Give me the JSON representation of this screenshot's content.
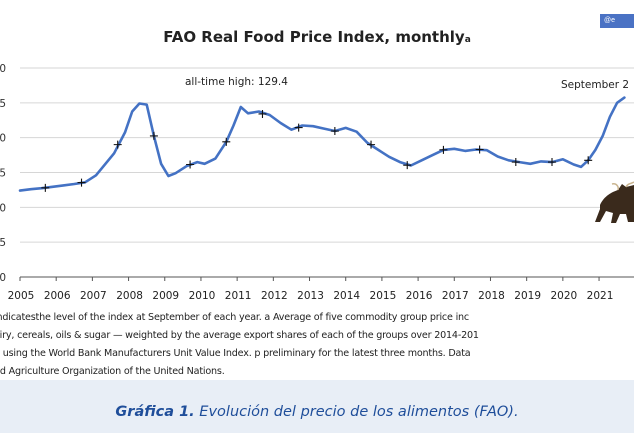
{
  "figure": {
    "title": "FAO Real Food Price Index, monthly",
    "title_mark": "a",
    "tag": "@e",
    "annotation_high": "all-time high: 129.4",
    "annotation_sep": "September 2",
    "notes": [
      "indicatesthe level of the index at September of each year. a Average of five commodity group price inc",
      "airy, cereals, oils & sugar — weighted by the average export shares of each of the groups over 2014-201",
      "d using the World Bank Manufacturers Unit Value Index. p preliminary for the latest three months. Data",
      "nd Agriculture Organization of the United Nations."
    ],
    "bull_icon": "bull-icon"
  },
  "caption": {
    "label": "Gráfica 1.",
    "text": " Evolución del precio de los alimentos (FAO)."
  },
  "chart_data": {
    "type": "line",
    "title": "FAO Real Food Price Index, monthly",
    "y_tick_labels": [
      "0",
      "5",
      "0",
      "5",
      "0",
      "5",
      "0"
    ],
    "x_tick_labels": [
      "2005",
      "2006",
      "2007",
      "2008",
      "2009",
      "2010",
      "2011",
      "2012",
      "2013",
      "2014",
      "2015",
      "2016",
      "2017",
      "2018",
      "2019",
      "2020",
      "2021"
    ],
    "ylim": [
      70,
      130
    ],
    "grid": "horizontal",
    "line_color": "#4472c4",
    "series": [
      {
        "x": [
          2005.0,
          2005.3,
          2005.6,
          2005.9,
          2006.2,
          2006.5,
          2006.8,
          2007.1,
          2007.3,
          2007.6,
          2007.9,
          2008.1,
          2008.3,
          2008.5,
          2008.7,
          2008.9,
          2009.1,
          2009.3,
          2009.6,
          2009.9,
          2010.1,
          2010.4,
          2010.7,
          2010.9,
          2011.1,
          2011.3,
          2011.6,
          2011.9,
          2012.2,
          2012.5,
          2012.8,
          2013.1,
          2013.4,
          2013.7,
          2014.0,
          2014.3,
          2014.6,
          2014.9,
          2015.2,
          2015.5,
          2015.8,
          2016.1,
          2016.4,
          2016.7,
          2017.0,
          2017.3,
          2017.6,
          2017.9,
          2018.2,
          2018.5,
          2018.8,
          2019.1,
          2019.4,
          2019.7,
          2020.0,
          2020.3,
          2020.5,
          2020.7,
          2020.9,
          2021.1,
          2021.3,
          2021.5,
          2021.7
        ],
        "y": [
          94.8,
          95.2,
          95.5,
          95.9,
          96.3,
          96.7,
          97.2,
          99.2,
          101.7,
          105.5,
          111.5,
          117.5,
          119.8,
          119.5,
          110.5,
          102.5,
          99.0,
          99.8,
          101.8,
          103.0,
          102.5,
          104.0,
          108.8,
          113.5,
          118.8,
          117.0,
          117.5,
          116.5,
          114.2,
          112.3,
          113.5,
          113.3,
          112.6,
          111.9,
          112.8,
          111.7,
          108.5,
          106.5,
          104.5,
          103.0,
          102.0,
          103.5,
          105.0,
          106.5,
          106.8,
          106.2,
          106.6,
          106.4,
          104.6,
          103.5,
          103.0,
          102.5,
          103.2,
          103.0,
          103.8,
          102.3,
          101.6,
          103.5,
          106.5,
          110.5,
          116.0,
          120.0,
          121.5
        ]
      }
    ],
    "annotations": [
      {
        "text": "all-time high: 129.4",
        "x": 2009.1,
        "y": 119.5
      },
      {
        "text": "September 2",
        "x": 2020.1,
        "y": 118.5
      }
    ],
    "september_markers": {
      "x": [
        2005.7,
        2006.7,
        2007.7,
        2008.7,
        2009.7,
        2010.7,
        2011.7,
        2012.7,
        2013.7,
        2014.7,
        2015.7,
        2016.7,
        2017.7,
        2018.7,
        2019.7,
        2020.7
      ],
      "y": [
        95.6,
        97.1,
        108.0,
        110.5,
        102.3,
        108.8,
        116.8,
        112.9,
        111.9,
        108.0,
        102.1,
        106.5,
        106.6,
        103.0,
        103.0,
        103.5
      ]
    }
  }
}
